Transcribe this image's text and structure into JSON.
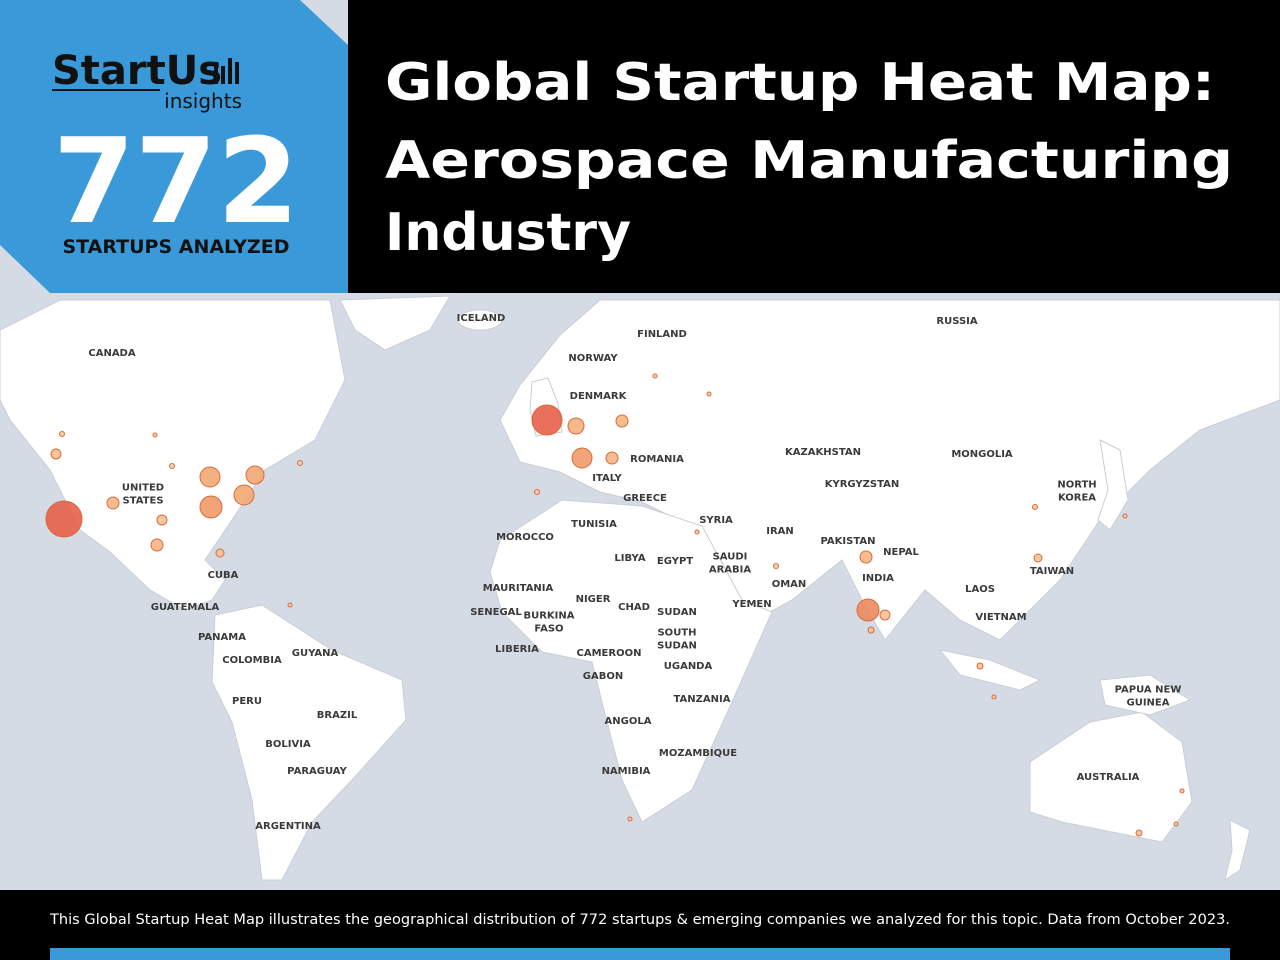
{
  "header": {
    "logo": {
      "brand": "StartUs",
      "sub": "insights"
    },
    "count": "772",
    "count_caption": "STARTUPS ANALYZED",
    "title_lines": [
      "Global Startup Heat Map:",
      "Aerospace Manufacturing",
      "Industry"
    ]
  },
  "map": {
    "labels": [
      "ICELAND",
      "FINLAND",
      "RUSSIA",
      "CANADA",
      "NORWAY",
      "DENMARK",
      "ROMANIA",
      "KAZAKHSTAN",
      "MONGOLIA",
      [
        "UNITED",
        "STATES"
      ],
      "ITALY",
      "GREECE",
      "KYRGYZSTAN",
      [
        "NORTH",
        "KOREA"
      ],
      "TUNISIA",
      "SYRIA",
      "IRAN",
      "MOROCCO",
      "PAKISTAN",
      "LIBYA",
      "EGYPT",
      [
        "SAUDI",
        "ARABIA"
      ],
      "NEPAL",
      "CUBA",
      "INDIA",
      "TAIWAN",
      "OMAN",
      "MAURITANIA",
      "NIGER",
      "LAOS",
      "YEMEN",
      "CHAD",
      "SUDAN",
      "SENEGAL",
      [
        "BURKINA",
        "FASO"
      ],
      "GUATEMALA",
      "VIETNAM",
      "PANAMA",
      [
        "SOUTH",
        "SUDAN"
      ],
      "GUYANA",
      "LIBERIA",
      "COLOMBIA",
      "CAMEROON",
      "UGANDA",
      "GABON",
      "PERU",
      "BRAZIL",
      [
        "PAPUA NEW",
        "GUINEA"
      ],
      "TANZANIA",
      "ANGOLA",
      "BOLIVIA",
      "MOZAMBIQUE",
      "PARAGUAY",
      "NAMIBIA",
      "AUSTRALIA",
      "ARGENTINA"
    ]
  },
  "footer": {
    "text": "This Global Startup Heat Map illustrates the geographical distribution of 772 startups & emerging companies we analyzed for this topic. Data from October 2023."
  }
}
